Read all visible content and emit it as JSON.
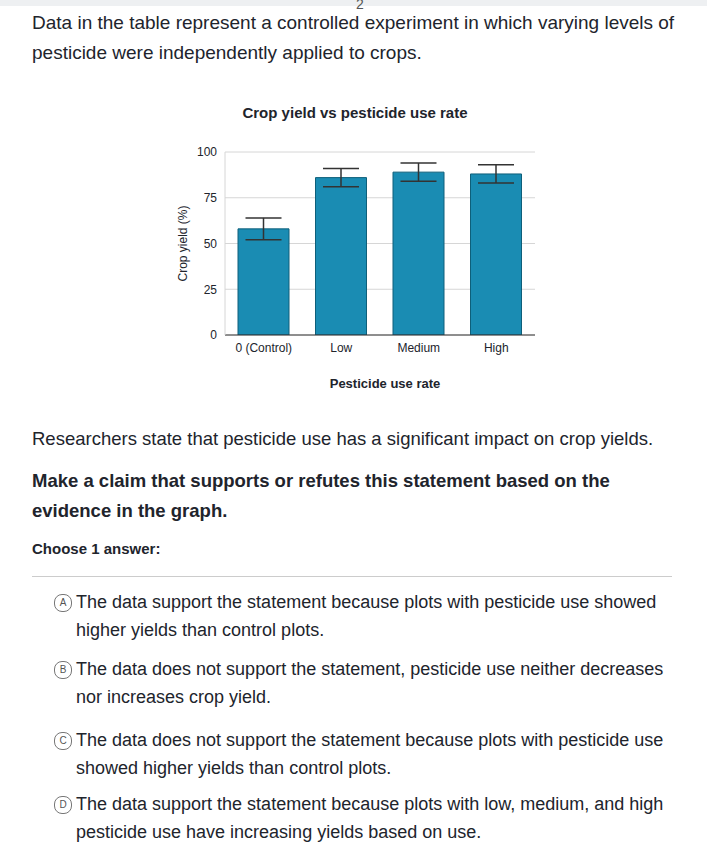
{
  "header": {
    "step": 2,
    "intro": "Data in the table represent a controlled experiment in which varying levels of pesticide were independently applied to crops."
  },
  "chart_data": {
    "type": "bar",
    "title": "Crop yield vs pesticide use rate",
    "x_label": "Pesticide use rate",
    "y_label": "Crop yield (%)",
    "categories": [
      "0 (Control)",
      "Low",
      "Medium",
      "High"
    ],
    "values": [
      58,
      86,
      89,
      88
    ],
    "errors": [
      6,
      5,
      5,
      5
    ],
    "color": "#1a8cb3",
    "ylim": [
      0,
      100
    ],
    "yticks": [
      0,
      25,
      50,
      75,
      100
    ],
    "grid": true
  },
  "question": {
    "statement": "Researchers state that pesticide use has a significant impact on crop yields.",
    "prompt": "Make a claim that supports or refutes this statement based on the evidence in the graph.",
    "instruction": "Choose 1 answer:",
    "options": [
      {
        "letter": "A",
        "text": "The data support the statement because plots with pesticide use showed higher yields than control plots."
      },
      {
        "letter": "B",
        "text": "The data does not support the statement, pesticide use neither decreases nor increases crop yield."
      },
      {
        "letter": "C",
        "text": "The data does not support the statement because plots with pesticide use showed higher yields than control plots."
      },
      {
        "letter": "D",
        "text": "The data support the statement because plots with low, medium, and high pesticide use have increasing yields based on use."
      }
    ]
  }
}
